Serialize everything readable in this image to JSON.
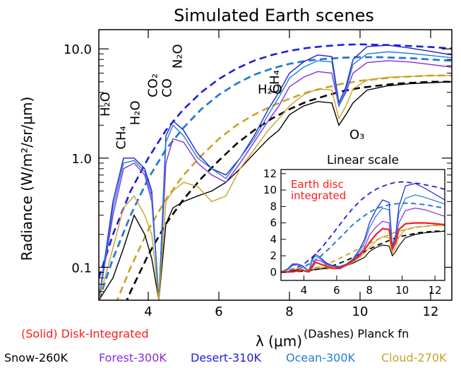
{
  "chart_data": {
    "type": "line",
    "title": "Simulated Earth scenes",
    "xlabel": "λ (μm)",
    "ylabel": "Radiance (W/m²/sr/μm)",
    "xlim": [
      2.6,
      12.6
    ],
    "ylim": [
      0.05,
      15
    ],
    "yscale": "log",
    "x_ticks": [
      4,
      6,
      8,
      10,
      12
    ],
    "y_ticks": [
      {
        "value": 0.1,
        "label": "0.1"
      },
      {
        "value": 1.0,
        "label": "1.0"
      },
      {
        "value": 10.0,
        "label": "10.0"
      }
    ],
    "legend_left": "(Solid) Disk-Integrated",
    "legend_right": "(Dashes) Planck fn",
    "series": [
      {
        "name": "Snow-260K",
        "color": "#000000",
        "temperature_K": 260
      },
      {
        "name": "Forest-300K",
        "color": "#8a2be2",
        "temperature_K": 300
      },
      {
        "name": "Desert-310K",
        "color": "#1f1fd6",
        "temperature_K": 310
      },
      {
        "name": "Ocean-300K",
        "color": "#1e7fd0",
        "temperature_K": 300
      },
      {
        "name": "Cloud-270K",
        "color": "#c9a227",
        "temperature_K": 270
      }
    ],
    "disk_integrated": {
      "name": "Earth disc integrated",
      "color": "#ff1a1a"
    },
    "spectra": {
      "x": [
        2.6,
        3.0,
        3.3,
        3.6,
        3.9,
        4.1,
        4.3,
        4.5,
        4.7,
        5.0,
        5.4,
        5.8,
        6.2,
        6.6,
        7.0,
        7.4,
        7.7,
        8.0,
        8.4,
        8.8,
        9.2,
        9.4,
        9.6,
        9.8,
        10.2,
        10.8,
        11.4,
        12.0,
        12.6
      ],
      "snow": [
        0.05,
        0.08,
        0.15,
        0.3,
        0.2,
        0.12,
        0.05,
        0.25,
        0.35,
        0.4,
        0.45,
        0.5,
        0.6,
        0.8,
        1.1,
        1.5,
        1.8,
        2.5,
        3.0,
        3.3,
        3.2,
        2.0,
        2.5,
        3.2,
        4.2,
        4.6,
        4.8,
        4.9,
        5.0
      ],
      "forest": [
        0.05,
        0.3,
        0.8,
        0.9,
        0.7,
        0.4,
        0.05,
        0.9,
        1.5,
        1.4,
        0.9,
        0.7,
        0.6,
        0.9,
        1.4,
        2.2,
        3.0,
        4.5,
        5.5,
        6.2,
        6.0,
        3.0,
        4.0,
        6.0,
        7.5,
        7.8,
        7.6,
        7.2,
        6.8
      ],
      "desert": [
        0.05,
        0.4,
        1.0,
        1.0,
        0.8,
        0.5,
        0.05,
        1.6,
        2.2,
        1.8,
        1.1,
        0.8,
        0.7,
        1.0,
        1.6,
        2.8,
        4.0,
        6.0,
        7.6,
        8.8,
        8.5,
        3.2,
        4.5,
        8.0,
        10.5,
        10.8,
        10.2,
        9.5,
        8.8
      ],
      "ocean": [
        0.05,
        0.35,
        0.9,
        0.95,
        0.75,
        0.45,
        0.05,
        1.4,
        2.0,
        1.6,
        1.0,
        0.8,
        0.65,
        1.0,
        1.5,
        2.5,
        3.6,
        5.4,
        6.8,
        7.8,
        7.6,
        3.0,
        4.2,
        7.2,
        9.0,
        9.4,
        9.1,
        8.7,
        8.3
      ],
      "cloud": [
        0.05,
        0.15,
        0.35,
        0.45,
        0.3,
        0.2,
        0.05,
        0.4,
        0.5,
        0.6,
        0.55,
        0.4,
        0.45,
        0.8,
        1.2,
        1.8,
        2.3,
        3.0,
        3.8,
        4.3,
        4.2,
        2.3,
        3.0,
        4.3,
        5.2,
        5.5,
        5.6,
        5.7,
        5.7
      ]
    },
    "planck_x": [
      2.6,
      3.0,
      3.5,
      4.0,
      4.5,
      5.0,
      5.5,
      6.0,
      6.5,
      7.0,
      7.5,
      8.0,
      8.5,
      9.0,
      9.5,
      10.0,
      10.5,
      11.0,
      11.5,
      12.0,
      12.6
    ],
    "planck": {
      "snow": [
        0.01,
        0.02,
        0.06,
        0.13,
        0.25,
        0.42,
        0.65,
        0.95,
        1.35,
        1.8,
        2.3,
        2.8,
        3.3,
        3.7,
        4.1,
        4.4,
        4.6,
        4.8,
        4.9,
        5.0,
        5.0
      ],
      "forest": [
        0.05,
        0.12,
        0.3,
        0.65,
        1.2,
        1.9,
        2.8,
        3.8,
        4.8,
        5.8,
        6.6,
        7.3,
        7.8,
        8.1,
        8.3,
        8.4,
        8.4,
        8.3,
        8.2,
        8.0,
        7.8
      ],
      "desert": [
        0.08,
        0.2,
        0.5,
        1.0,
        1.8,
        2.8,
        4.0,
        5.3,
        6.6,
        7.8,
        8.8,
        9.6,
        10.2,
        10.6,
        10.9,
        11.0,
        10.9,
        10.8,
        10.6,
        10.4,
        10.1
      ],
      "ocean": [
        0.05,
        0.12,
        0.3,
        0.65,
        1.2,
        1.9,
        2.8,
        3.8,
        4.8,
        5.8,
        6.6,
        7.3,
        7.8,
        8.1,
        8.3,
        8.4,
        8.4,
        8.3,
        8.2,
        8.0,
        7.8
      ],
      "cloud": [
        0.02,
        0.04,
        0.1,
        0.22,
        0.42,
        0.7,
        1.05,
        1.5,
        2.0,
        2.5,
        3.0,
        3.5,
        4.0,
        4.4,
        4.8,
        5.1,
        5.3,
        5.5,
        5.6,
        5.7,
        5.7
      ]
    },
    "annotations": [
      {
        "text": "H₂O",
        "x": 2.9,
        "y": 2.4,
        "rotate": true
      },
      {
        "text": "CH₄",
        "x": 3.35,
        "y": 1.2,
        "rotate": true
      },
      {
        "text": "H₂O",
        "x": 3.75,
        "y": 2.0,
        "rotate": true
      },
      {
        "text": "CO₂",
        "x": 4.25,
        "y": 3.6,
        "rotate": true
      },
      {
        "text": "CO",
        "x": 4.65,
        "y": 3.6,
        "rotate": true
      },
      {
        "text": "N₂O",
        "x": 4.95,
        "y": 6.6,
        "rotate": true
      },
      {
        "text": "H₂O",
        "x": 7.1,
        "y": 3.9,
        "rotate": false
      },
      {
        "text": "CH₄",
        "x": 7.7,
        "y": 3.9,
        "rotate": true
      },
      {
        "text": "N₂O",
        "x": 8.1,
        "y": 0.4,
        "rotate": false
      },
      {
        "text": "O₃",
        "x": 9.7,
        "y": 1.5,
        "rotate": false
      }
    ],
    "inset": {
      "title": "Linear scale",
      "type": "line",
      "xlim": [
        2.6,
        12.6
      ],
      "ylim": [
        -1,
        12.5
      ],
      "x_ticks": [
        4,
        6,
        8,
        10,
        12
      ],
      "y_ticks": [
        0,
        2,
        4,
        6,
        8,
        10,
        12
      ],
      "label": [
        "Earth disc",
        "integrated"
      ],
      "disk_integrated_values": [
        0.0,
        0.02,
        0.05,
        0.15,
        0.3,
        0.1,
        0.05,
        0.6,
        1.2,
        1.0,
        0.7,
        0.5,
        0.45,
        0.9,
        1.4,
        2.0,
        2.7,
        3.6,
        4.6,
        5.3,
        5.2,
        2.8,
        3.6,
        5.2,
        5.9,
        6.0,
        6.0,
        5.9,
        5.8
      ]
    }
  }
}
